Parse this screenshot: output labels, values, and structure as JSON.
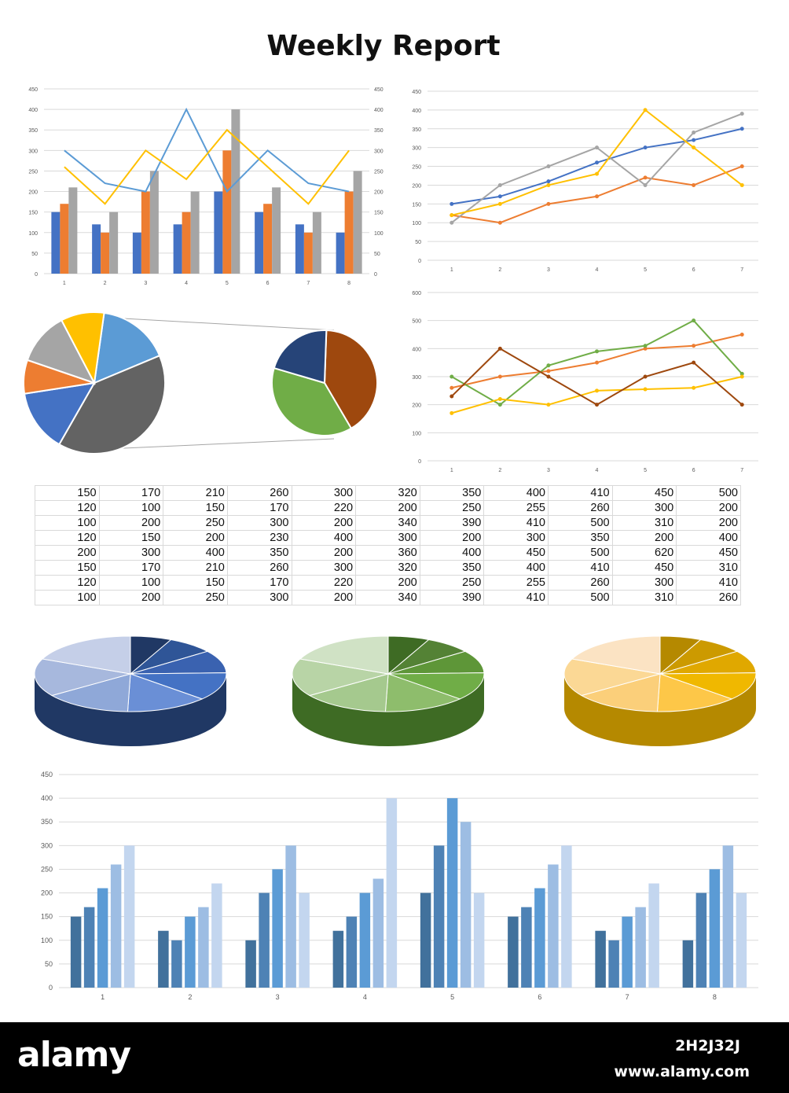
{
  "title": "Weekly Report",
  "colors": {
    "blue": "#4472c4",
    "orange": "#ed7d31",
    "gray": "#a5a5a5",
    "gold": "#ffc000",
    "lightblue": "#5b9bd5",
    "darkgray": "#636363",
    "green": "#70ad47",
    "brown": "#9e480e",
    "navy": "#264478",
    "grid": "#d9d9d9"
  },
  "chart_data": [
    {
      "type": "bar",
      "categories": [
        "1",
        "2",
        "3",
        "4",
        "5",
        "6",
        "7",
        "8"
      ],
      "series": [
        {
          "values": [
            150,
            120,
            100,
            120,
            200,
            150,
            120,
            100
          ]
        },
        {
          "values": [
            170,
            100,
            200,
            150,
            300,
            170,
            100,
            200
          ]
        },
        {
          "values": [
            210,
            150,
            250,
            200,
            400,
            210,
            150,
            250
          ]
        }
      ],
      "line_series": [
        {
          "values": [
            300,
            220,
            200,
            400,
            200,
            300,
            220,
            200
          ]
        },
        {
          "values": [
            260,
            170,
            300,
            230,
            350,
            260,
            170,
            300
          ]
        }
      ],
      "ylim": [
        0,
        450
      ],
      "yticks": [
        "0",
        "50",
        "100",
        "150",
        "200",
        "250",
        "300",
        "350",
        "400",
        "450"
      ],
      "grid": true
    },
    {
      "type": "line",
      "categories": [
        "1",
        "2",
        "3",
        "4",
        "5",
        "6",
        "7"
      ],
      "series": [
        {
          "values": [
            150,
            170,
            210,
            260,
            300,
            320,
            350
          ]
        },
        {
          "values": [
            120,
            100,
            150,
            170,
            220,
            200,
            250
          ]
        },
        {
          "values": [
            100,
            200,
            250,
            300,
            200,
            340,
            390
          ]
        },
        {
          "values": [
            120,
            150,
            200,
            230,
            400,
            300,
            200
          ]
        }
      ],
      "ylim": [
        0,
        450
      ],
      "yticks": [
        "0",
        "50",
        "100",
        "150",
        "200",
        "250",
        "300",
        "350",
        "400",
        "450"
      ],
      "grid": true
    },
    {
      "type": "pie",
      "variant": "pie-of-pie",
      "main_slices": [
        {
          "value": 15,
          "color": "#5b9bd5"
        },
        {
          "value": 36,
          "color": "#636363"
        },
        {
          "value": 13,
          "color": "#4472c4"
        },
        {
          "value": 7,
          "color": "#ed7d31"
        },
        {
          "value": 11,
          "color": "#a5a5a5"
        },
        {
          "value": 9,
          "color": "#ffc000"
        }
      ],
      "secondary_slices": [
        {
          "value": 41,
          "color": "#9e480e"
        },
        {
          "value": 38,
          "color": "#70ad47"
        },
        {
          "value": 21,
          "color": "#264478"
        }
      ]
    },
    {
      "type": "line",
      "categories": [
        "1",
        "2",
        "3",
        "4",
        "5",
        "6",
        "7"
      ],
      "series": [
        {
          "values": [
            260,
            300,
            320,
            350,
            400,
            410,
            450
          ]
        },
        {
          "values": [
            300,
            200,
            340,
            390,
            410,
            500,
            310
          ]
        },
        {
          "values": [
            170,
            220,
            200,
            250,
            255,
            260,
            300
          ]
        },
        {
          "values": [
            230,
            400,
            300,
            200,
            300,
            350,
            200
          ]
        }
      ],
      "ylim": [
        0,
        600
      ],
      "yticks": [
        "0",
        "100",
        "200",
        "300",
        "400",
        "500",
        "600"
      ],
      "grid": true
    },
    {
      "type": "table",
      "rows": [
        [
          "150",
          "170",
          "210",
          "260",
          "300",
          "320",
          "350",
          "400",
          "410",
          "450",
          "500"
        ],
        [
          "120",
          "100",
          "150",
          "170",
          "220",
          "200",
          "250",
          "255",
          "260",
          "300",
          "200"
        ],
        [
          "100",
          "200",
          "250",
          "300",
          "200",
          "340",
          "390",
          "410",
          "500",
          "310",
          "200"
        ],
        [
          "120",
          "150",
          "200",
          "230",
          "400",
          "300",
          "200",
          "300",
          "350",
          "200",
          "400"
        ],
        [
          "200",
          "300",
          "400",
          "350",
          "200",
          "360",
          "400",
          "450",
          "500",
          "620",
          "450"
        ],
        [
          "150",
          "170",
          "210",
          "260",
          "300",
          "320",
          "350",
          "400",
          "410",
          "450",
          "310"
        ],
        [
          "120",
          "100",
          "150",
          "170",
          "220",
          "200",
          "250",
          "255",
          "260",
          "300",
          "410"
        ],
        [
          "100",
          "200",
          "250",
          "300",
          "200",
          "340",
          "390",
          "410",
          "500",
          "310",
          "260"
        ]
      ]
    },
    {
      "type": "pie",
      "variant": "3d",
      "values": [
        150,
        170,
        210,
        260,
        300,
        320,
        350,
        400
      ],
      "palette": [
        "#203864",
        "#2f5597",
        "#3a62b0",
        "#4472c4",
        "#6a8fd6",
        "#8fa8d8",
        "#a7b8dd",
        "#c5cfe8"
      ]
    },
    {
      "type": "pie",
      "variant": "3d",
      "values": [
        150,
        170,
        210,
        260,
        300,
        320,
        350,
        400
      ],
      "palette": [
        "#3e6b24",
        "#548235",
        "#5e9638",
        "#70ad47",
        "#8ebd6c",
        "#a5c98e",
        "#b8d4a6",
        "#d0e2c5"
      ]
    },
    {
      "type": "pie",
      "variant": "3d",
      "values": [
        150,
        170,
        210,
        260,
        300,
        320,
        350,
        400
      ],
      "palette": [
        "#b58900",
        "#cc9a00",
        "#e0a800",
        "#f0b800",
        "#fdc748",
        "#fbcf7a",
        "#fbd895",
        "#fbe3c3"
      ]
    },
    {
      "type": "bar",
      "categories": [
        "1",
        "2",
        "3",
        "4",
        "5",
        "6",
        "7",
        "8"
      ],
      "series": [
        {
          "values": [
            150,
            120,
            100,
            120,
            200,
            150,
            120,
            100
          ]
        },
        {
          "values": [
            170,
            100,
            200,
            150,
            300,
            170,
            100,
            200
          ]
        },
        {
          "values": [
            210,
            150,
            250,
            200,
            400,
            210,
            150,
            250
          ]
        },
        {
          "values": [
            260,
            170,
            300,
            230,
            350,
            260,
            170,
            300
          ]
        },
        {
          "values": [
            300,
            220,
            200,
            400,
            200,
            300,
            220,
            200
          ]
        }
      ],
      "ylim": [
        0,
        450
      ],
      "yticks": [
        "0",
        "50",
        "100",
        "150",
        "200",
        "250",
        "300",
        "350",
        "400",
        "450"
      ],
      "grid": true
    }
  ],
  "watermark": {
    "brand": "alamy",
    "image_id": "2H2J32J",
    "url": "www.alamy.com"
  }
}
